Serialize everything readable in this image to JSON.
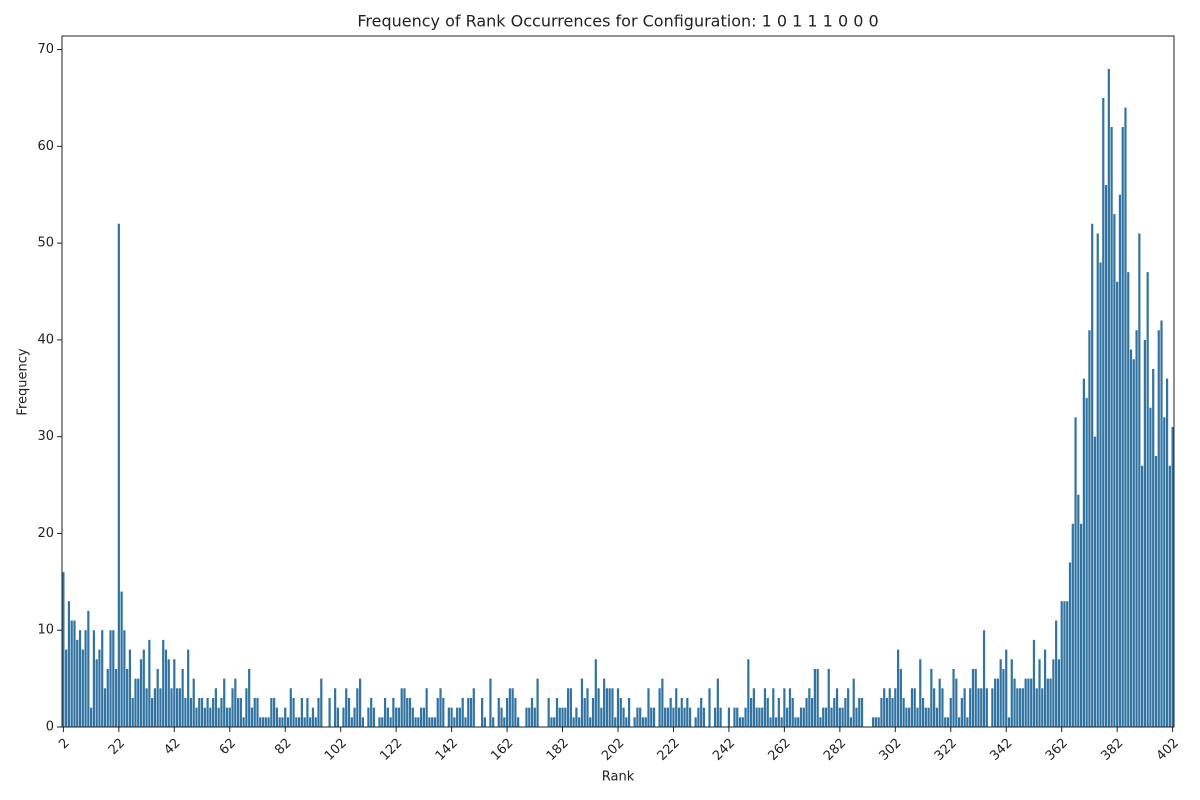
{
  "chart_data": {
    "type": "bar",
    "title": "Frequency of Rank Occurrences for Configuration: 1 0 1 1 1 0 0 0",
    "x_label": "Rank",
    "y_label": "Frequency",
    "color": "#3274a1",
    "ylim": [
      0,
      71.4
    ],
    "yticks": [
      0,
      10,
      20,
      30,
      40,
      50,
      60,
      70
    ],
    "categories": [
      "2",
      null,
      null,
      null,
      null,
      null,
      null,
      null,
      null,
      null,
      null,
      null,
      null,
      null,
      null,
      null,
      null,
      null,
      null,
      null,
      "22",
      null,
      null,
      null,
      null,
      null,
      null,
      null,
      null,
      null,
      null,
      null,
      null,
      null,
      null,
      null,
      null,
      null,
      null,
      null,
      "42",
      null,
      null,
      null,
      null,
      null,
      null,
      null,
      null,
      null,
      null,
      null,
      null,
      null,
      null,
      null,
      null,
      null,
      null,
      null,
      "62",
      null,
      null,
      null,
      null,
      null,
      null,
      null,
      null,
      null,
      null,
      null,
      null,
      null,
      null,
      null,
      null,
      null,
      null,
      null,
      "82",
      null,
      null,
      null,
      null,
      null,
      null,
      null,
      null,
      null,
      null,
      null,
      null,
      null,
      null,
      null,
      null,
      null,
      null,
      null,
      "102",
      null,
      null,
      null,
      null,
      null,
      null,
      null,
      null,
      null,
      null,
      null,
      null,
      null,
      null,
      null,
      null,
      null,
      null,
      null,
      "122",
      null,
      null,
      null,
      null,
      null,
      null,
      null,
      null,
      null,
      null,
      null,
      null,
      null,
      null,
      null,
      null,
      null,
      null,
      null,
      "142",
      null,
      null,
      null,
      null,
      null,
      null,
      null,
      null,
      null,
      null,
      null,
      null,
      null,
      null,
      null,
      null,
      null,
      null,
      null,
      "162",
      null,
      null,
      null,
      null,
      null,
      null,
      null,
      null,
      null,
      null,
      null,
      null,
      null,
      null,
      null,
      null,
      null,
      null,
      null,
      "182",
      null,
      null,
      null,
      null,
      null,
      null,
      null,
      null,
      null,
      null,
      null,
      null,
      null,
      null,
      null,
      null,
      null,
      null,
      null,
      "202",
      null,
      null,
      null,
      null,
      null,
      null,
      null,
      null,
      null,
      null,
      null,
      null,
      null,
      null,
      null,
      null,
      null,
      null,
      null,
      "222",
      null,
      null,
      null,
      null,
      null,
      null,
      null,
      null,
      null,
      null,
      null,
      null,
      null,
      null,
      null,
      null,
      null,
      null,
      null,
      "242",
      null,
      null,
      null,
      null,
      null,
      null,
      null,
      null,
      null,
      null,
      null,
      null,
      null,
      null,
      null,
      null,
      null,
      null,
      null,
      "262",
      null,
      null,
      null,
      null,
      null,
      null,
      null,
      null,
      null,
      null,
      null,
      null,
      null,
      null,
      null,
      null,
      null,
      null,
      null,
      "282",
      null,
      null,
      null,
      null,
      null,
      null,
      null,
      null,
      null,
      null,
      null,
      null,
      null,
      null,
      null,
      null,
      null,
      null,
      null,
      "302",
      null,
      null,
      null,
      null,
      null,
      null,
      null,
      null,
      null,
      null,
      null,
      null,
      null,
      null,
      null,
      null,
      null,
      null,
      null,
      "322",
      null,
      null,
      null,
      null,
      null,
      null,
      null,
      null,
      null,
      null,
      null,
      null,
      null,
      null,
      null,
      null,
      null,
      null,
      null,
      "342",
      null,
      null,
      null,
      null,
      null,
      null,
      null,
      null,
      null,
      null,
      null,
      null,
      null,
      null,
      null,
      null,
      null,
      null,
      null,
      "362",
      null,
      null,
      null,
      null,
      null,
      null,
      null,
      null,
      null,
      null,
      null,
      null,
      null,
      null,
      null,
      null,
      null,
      null,
      null,
      "382",
      null,
      null,
      null,
      null,
      null,
      null,
      null,
      null,
      null,
      null,
      null,
      null,
      null,
      null,
      null,
      null,
      null,
      null,
      null,
      "402"
    ],
    "values": [
      16,
      8,
      13,
      11,
      11,
      9,
      10,
      8,
      10,
      12,
      2,
      10,
      7,
      8,
      10,
      4,
      6,
      10,
      10,
      6,
      52,
      14,
      10,
      6,
      8,
      3,
      5,
      5,
      7,
      8,
      4,
      9,
      3,
      4,
      6,
      4,
      9,
      8,
      7,
      4,
      7,
      4,
      4,
      6,
      3,
      8,
      3,
      5,
      2,
      3,
      3,
      2,
      3,
      2,
      3,
      4,
      2,
      3,
      5,
      2,
      2,
      4,
      5,
      3,
      3,
      1,
      4,
      6,
      2,
      3,
      3,
      1,
      1,
      1,
      1,
      3,
      3,
      2,
      1,
      1,
      2,
      1,
      4,
      3,
      1,
      1,
      3,
      1,
      3,
      1,
      2,
      1,
      3,
      5,
      0,
      0,
      3,
      0,
      4,
      2,
      0,
      2,
      4,
      3,
      1,
      2,
      4,
      5,
      1,
      0,
      2,
      3,
      2,
      0,
      1,
      1,
      3,
      2,
      1,
      3,
      2,
      2,
      4,
      4,
      3,
      3,
      2,
      1,
      1,
      2,
      2,
      4,
      1,
      1,
      1,
      3,
      4,
      3,
      0,
      2,
      2,
      1,
      2,
      2,
      3,
      1,
      3,
      3,
      4,
      0,
      0,
      3,
      1,
      0,
      5,
      1,
      0,
      3,
      2,
      1,
      3,
      4,
      4,
      3,
      1,
      0,
      0,
      2,
      2,
      3,
      2,
      5,
      0,
      0,
      0,
      3,
      1,
      1,
      3,
      2,
      2,
      2,
      4,
      4,
      1,
      2,
      1,
      5,
      3,
      4,
      1,
      3,
      7,
      4,
      2,
      5,
      4,
      4,
      4,
      1,
      4,
      3,
      2,
      1,
      3,
      0,
      1,
      2,
      2,
      1,
      1,
      4,
      2,
      2,
      0,
      4,
      5,
      2,
      2,
      3,
      2,
      4,
      2,
      3,
      2,
      3,
      2,
      0,
      1,
      2,
      3,
      2,
      0,
      4,
      0,
      2,
      5,
      2,
      0,
      0,
      2,
      0,
      2,
      2,
      1,
      1,
      2,
      7,
      3,
      4,
      2,
      2,
      2,
      4,
      3,
      1,
      4,
      1,
      3,
      1,
      4,
      2,
      4,
      3,
      1,
      1,
      2,
      2,
      3,
      4,
      3,
      6,
      6,
      1,
      2,
      2,
      6,
      2,
      3,
      4,
      2,
      2,
      3,
      4,
      1,
      5,
      2,
      3,
      3,
      0,
      0,
      0,
      1,
      1,
      1,
      3,
      4,
      3,
      4,
      3,
      4,
      8,
      6,
      3,
      2,
      2,
      4,
      4,
      2,
      7,
      3,
      2,
      2,
      6,
      4,
      2,
      5,
      4,
      1,
      1,
      3,
      6,
      5,
      1,
      3,
      4,
      1,
      4,
      6,
      6,
      4,
      4,
      10,
      4,
      0,
      4,
      5,
      5,
      7,
      6,
      8,
      1,
      7,
      5,
      4,
      4,
      4,
      5,
      5,
      5,
      9,
      4,
      7,
      4,
      8,
      5,
      5,
      7,
      11,
      7,
      13,
      13,
      13,
      17,
      21,
      32,
      24,
      21,
      36,
      34,
      41,
      52,
      30,
      51,
      48,
      65,
      56,
      68,
      62,
      53,
      46,
      55,
      62,
      64,
      47,
      39,
      38,
      41,
      51,
      27,
      40,
      47,
      33,
      37,
      28,
      41,
      42,
      32,
      36,
      27,
      31
    ]
  }
}
